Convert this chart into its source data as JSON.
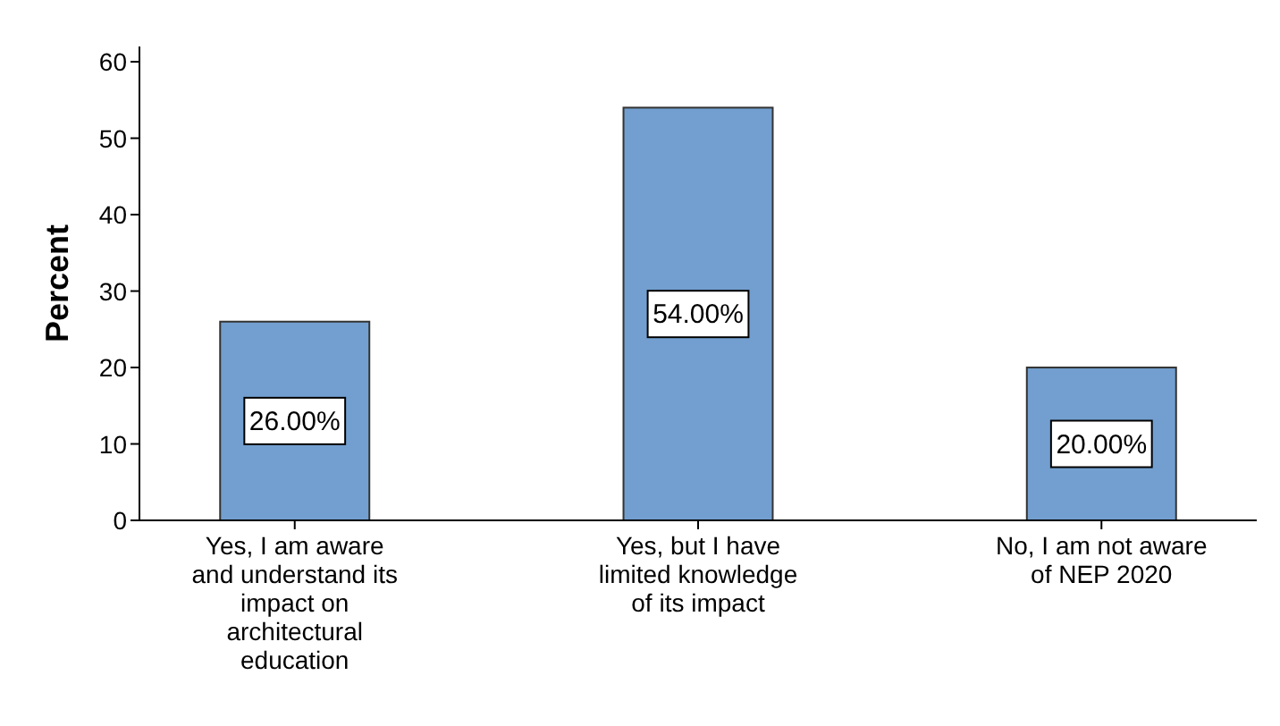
{
  "chart_data": {
    "type": "bar",
    "ylabel": "Percent",
    "categories": [
      "Yes, I am aware and understand its impact on architectural education",
      "Yes, but I have limited knowledge of its impact",
      "No, I am not aware of NEP 2020"
    ],
    "values": [
      26,
      54,
      20
    ],
    "color": "#729fcf",
    "value_labels": [
      "26.00%",
      "54.00%",
      "20.00%"
    ],
    "ylim": [
      0,
      62
    ],
    "yticks": [
      0,
      10,
      20,
      30,
      40,
      50,
      60
    ],
    "grid": false
  }
}
